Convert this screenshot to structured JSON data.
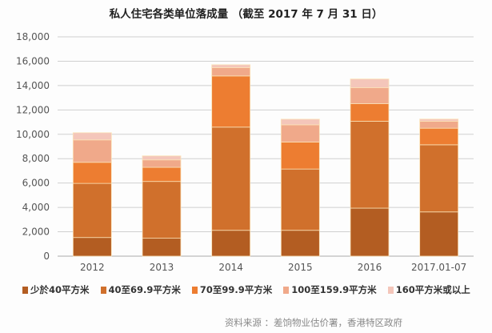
{
  "chart_data": {
    "type": "bar",
    "stacked": true,
    "title": "私人住宅各类单位落成量 （截至 2017 年 7 月 31 日）",
    "categories": [
      "2012",
      "2013",
      "2014",
      "2015",
      "2016",
      "2017.01-07"
    ],
    "series": [
      {
        "name": "少於40平方米",
        "color": "#b35d22",
        "values": [
          1530,
          1470,
          2120,
          2120,
          3940,
          3630
        ]
      },
      {
        "name": "40至69.9平方米",
        "color": "#d0702c",
        "values": [
          4440,
          4660,
          8470,
          5030,
          7130,
          5510
        ]
      },
      {
        "name": "70至99.9平方米",
        "color": "#ed7d31",
        "values": [
          1730,
          1160,
          4200,
          2210,
          1440,
          1360
        ]
      },
      {
        "name": "100至159.9平方米",
        "color": "#f0a98a",
        "values": [
          1840,
          610,
          680,
          1420,
          1310,
          570
        ]
      },
      {
        "name": "160平方米或以上",
        "color": "#f4c6ba",
        "values": [
          590,
          330,
          240,
          460,
          720,
          180
        ]
      }
    ],
    "ylim": [
      0,
      18000
    ],
    "yticks": [
      "0",
      "2,000",
      "4,000",
      "6,000",
      "8,000",
      "10,000",
      "12,000",
      "14,000",
      "16,000",
      "18,000"
    ],
    "grid": true,
    "legend_position": "bottom"
  },
  "source": "资料来源 ：差饷物业估价署，香港特区政府"
}
